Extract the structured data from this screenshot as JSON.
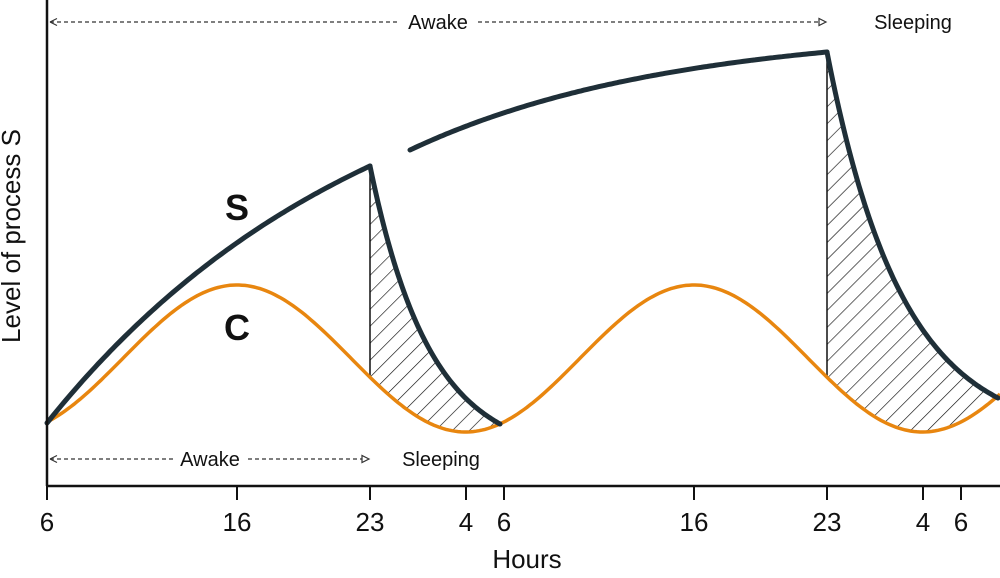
{
  "axes": {
    "x_label": "Hours",
    "y_label": "Level of process S",
    "x_ticks": [
      "6",
      "16",
      "23",
      "4",
      "6",
      "16",
      "23",
      "4",
      "6"
    ]
  },
  "curves": {
    "s_label": "S",
    "c_label": "C"
  },
  "annotations": {
    "awake_top": "Awake",
    "sleeping_top": "Sleeping",
    "awake_bottom": "Awake",
    "sleeping_bottom": "Sleeping"
  },
  "colors": {
    "s_curve": "#1f2f38",
    "c_curve": "#e8860f",
    "axis": "#111111",
    "hatch": "#111111"
  }
}
